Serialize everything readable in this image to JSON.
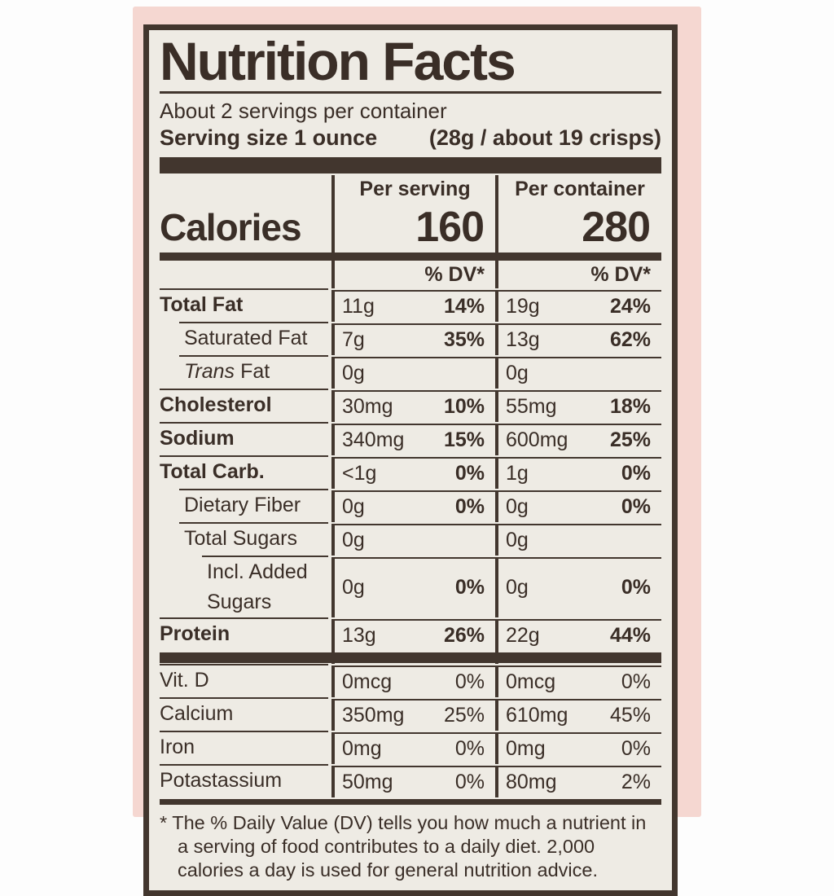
{
  "label": {
    "title": "Nutrition Facts",
    "servings_per_container": "About 2 servings per container",
    "serving_size": "Serving size 1 ounce",
    "serving_size_detail": "(28g / about 19 crisps)",
    "columns": {
      "per_serving": "Per serving",
      "per_container": "Per container"
    },
    "calories": {
      "name": "Calories",
      "per_serving": "160",
      "per_container": "280"
    },
    "dv_header": "% DV*",
    "rows": [
      {
        "name": "Total Fat",
        "sv_amount": "11g",
        "sv_dv": "14%",
        "ct_amount": "19g",
        "ct_dv": "24%"
      },
      {
        "name": "Saturated Fat",
        "sv_amount": "7g",
        "sv_dv": "35%",
        "ct_amount": "13g",
        "ct_dv": "62%"
      },
      {
        "name_italic": "Trans",
        "name_rest": "Fat",
        "sv_amount": "0g",
        "sv_dv": "",
        "ct_amount": "0g",
        "ct_dv": ""
      },
      {
        "name": "Cholesterol",
        "sv_amount": "30mg",
        "sv_dv": "10%",
        "ct_amount": "55mg",
        "ct_dv": "18%"
      },
      {
        "name": "Sodium",
        "sv_amount": "340mg",
        "sv_dv": "15%",
        "ct_amount": "600mg",
        "ct_dv": "25%"
      },
      {
        "name": "Total Carb.",
        "sv_amount": "<1g",
        "sv_dv": "0%",
        "ct_amount": "1g",
        "ct_dv": "0%"
      },
      {
        "name": "Dietary Fiber",
        "sv_amount": "0g",
        "sv_dv": "0%",
        "ct_amount": "0g",
        "ct_dv": "0%"
      },
      {
        "name": "Total Sugars",
        "sv_amount": "0g",
        "sv_dv": "",
        "ct_amount": "0g",
        "ct_dv": ""
      },
      {
        "name": "Incl. Added Sugars",
        "sv_amount": "0g",
        "sv_dv": "0%",
        "ct_amount": "0g",
        "ct_dv": "0%"
      },
      {
        "name": "Protein",
        "sv_amount": "13g",
        "sv_dv": "26%",
        "ct_amount": "22g",
        "ct_dv": "44%"
      }
    ],
    "vitamin_rows": [
      {
        "name": "Vit. D",
        "sv_amount": "0mcg",
        "sv_dv": "0%",
        "ct_amount": "0mcg",
        "ct_dv": "0%"
      },
      {
        "name": "Calcium",
        "sv_amount": "350mg",
        "sv_dv": "25%",
        "ct_amount": "610mg",
        "ct_dv": "45%"
      },
      {
        "name": "Iron",
        "sv_amount": "0mg",
        "sv_dv": "0%",
        "ct_amount": "0mg",
        "ct_dv": "0%"
      },
      {
        "name": "Potastassium",
        "sv_amount": "50mg",
        "sv_dv": "0%",
        "ct_amount": "80mg",
        "ct_dv": "2%"
      }
    ],
    "footnote": "* The % Daily Value (DV) tells you how much a nutrient in a serving of food contributes to a daily diet. 2,000 calories a day is used for general nutrition advice."
  },
  "colors": {
    "ink": "#42362e",
    "label_background": "#eeebe4",
    "package_pink": "#f5d7d1",
    "page_background": "#fdfdfd"
  }
}
